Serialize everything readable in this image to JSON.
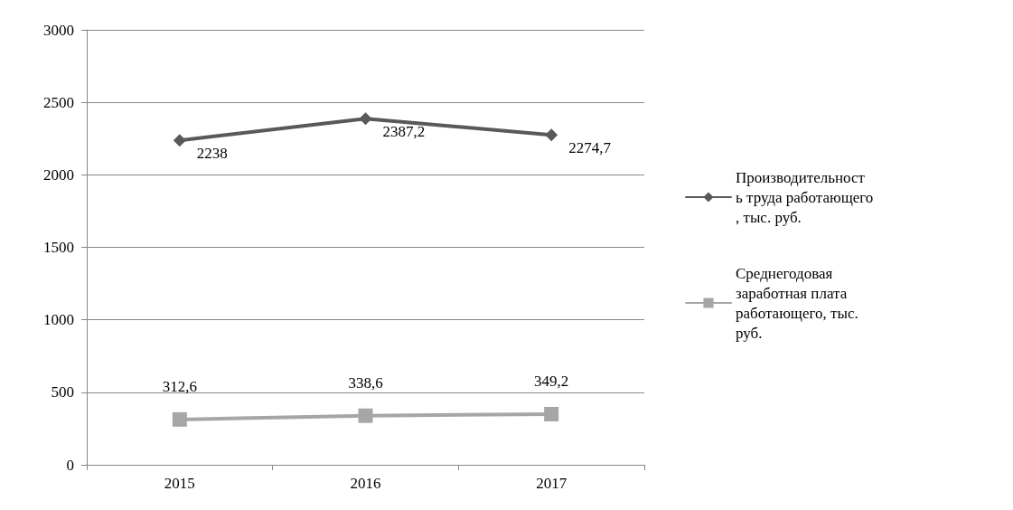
{
  "chart_data": {
    "type": "line",
    "categories": [
      "2015",
      "2016",
      "2017"
    ],
    "series": [
      {
        "name": "Производительность труда работающего, тыс. руб.",
        "color": "#595959",
        "marker": "diamond",
        "values": [
          2238,
          2387.2,
          2274.7
        ],
        "value_labels": [
          "2238",
          "2387,2",
          "2274,7"
        ]
      },
      {
        "name": "Среднегодовая заработная плата работающего, тыс. руб.",
        "color": "#a6a6a6",
        "marker": "square",
        "values": [
          312.6,
          338.6,
          349.2
        ],
        "value_labels": [
          "312,6",
          "338,6",
          "349,2"
        ]
      }
    ],
    "ylim": [
      0,
      3000
    ],
    "yticks": [
      0,
      500,
      1000,
      1500,
      2000,
      2500,
      3000
    ],
    "grid": "y",
    "legend": "right",
    "line_style": "solid"
  }
}
